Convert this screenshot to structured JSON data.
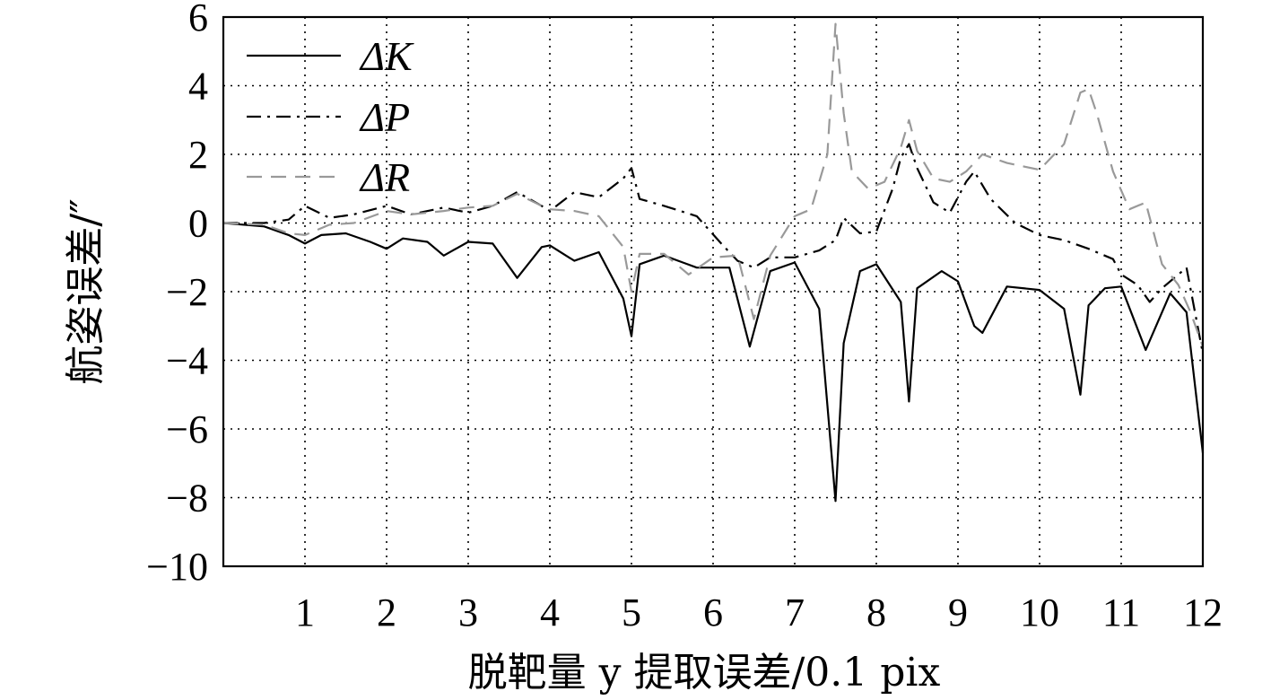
{
  "chart_data": {
    "type": "line",
    "xlabel": "脱靶量 y 提取误差/0.1 pix",
    "ylabel": "航姿误差/″",
    "xlim": [
      0,
      12
    ],
    "ylim": [
      -10,
      6
    ],
    "xticks": [
      "1",
      "2",
      "3",
      "4",
      "5",
      "6",
      "7",
      "8",
      "9",
      "10",
      "11",
      "12"
    ],
    "yticks": [
      "6",
      "4",
      "2",
      "0",
      "−2",
      "−4",
      "−6",
      "−8",
      "−10"
    ],
    "grid": true,
    "legend_position": "top-left",
    "series": [
      {
        "name": "ΔK",
        "style": "solid",
        "color": "#000000",
        "x": [
          0,
          0.5,
          0.8,
          1.0,
          1.2,
          1.5,
          1.8,
          2.0,
          2.2,
          2.5,
          2.7,
          3.0,
          3.3,
          3.6,
          3.9,
          4.0,
          4.3,
          4.6,
          4.9,
          5.0,
          5.1,
          5.4,
          5.8,
          6.2,
          6.45,
          6.7,
          7.0,
          7.3,
          7.5,
          7.6,
          7.8,
          8.0,
          8.3,
          8.4,
          8.5,
          8.8,
          9.0,
          9.2,
          9.3,
          9.6,
          10.0,
          10.3,
          10.5,
          10.6,
          10.8,
          11.0,
          11.3,
          11.6,
          11.8,
          12.0
        ],
        "y": [
          0,
          -0.1,
          -0.35,
          -0.6,
          -0.35,
          -0.3,
          -0.55,
          -0.75,
          -0.45,
          -0.55,
          -0.95,
          -0.55,
          -0.6,
          -1.6,
          -0.7,
          -0.65,
          -1.1,
          -0.85,
          -2.2,
          -3.3,
          -1.2,
          -0.95,
          -1.3,
          -1.3,
          -3.6,
          -1.4,
          -1.15,
          -2.5,
          -8.1,
          -3.5,
          -1.4,
          -1.2,
          -2.3,
          -5.2,
          -1.9,
          -1.4,
          -1.7,
          -3.0,
          -3.2,
          -1.85,
          -1.95,
          -2.5,
          -5.0,
          -2.4,
          -1.9,
          -1.85,
          -3.7,
          -2.05,
          -2.6,
          -6.7
        ]
      },
      {
        "name": "ΔP",
        "style": "dashdot",
        "color": "#000000",
        "x": [
          0,
          0.5,
          0.8,
          1.0,
          1.3,
          1.6,
          2.0,
          2.3,
          2.7,
          3.0,
          3.3,
          3.6,
          3.9,
          4.0,
          4.3,
          4.6,
          4.9,
          5.0,
          5.1,
          5.4,
          5.8,
          6.1,
          6.3,
          6.5,
          6.7,
          7.0,
          7.3,
          7.5,
          7.6,
          7.8,
          8.0,
          8.2,
          8.3,
          8.4,
          8.5,
          8.7,
          8.9,
          9.1,
          9.2,
          9.4,
          9.7,
          10.0,
          10.3,
          10.6,
          10.9,
          11.0,
          11.2,
          11.35,
          11.5,
          11.8,
          12.0
        ],
        "y": [
          0,
          0,
          0.1,
          0.5,
          0.15,
          0.25,
          0.5,
          0.25,
          0.45,
          0.3,
          0.5,
          0.9,
          0.5,
          0.35,
          0.9,
          0.75,
          1.3,
          1.6,
          0.7,
          0.5,
          0.2,
          -0.6,
          -1.1,
          -1.3,
          -1.0,
          -1.0,
          -0.8,
          -0.5,
          0.15,
          -0.3,
          -0.25,
          1.0,
          1.9,
          2.3,
          1.6,
          0.6,
          0.3,
          1.2,
          1.5,
          0.7,
          0.0,
          -0.35,
          -0.5,
          -0.75,
          -1.05,
          -1.5,
          -1.8,
          -2.3,
          -1.9,
          -1.3,
          -3.8
        ]
      },
      {
        "name": "ΔR",
        "style": "dashed",
        "color": "#999999",
        "x": [
          0,
          0.5,
          0.8,
          1.0,
          1.3,
          1.6,
          2.0,
          2.3,
          2.7,
          3.0,
          3.3,
          3.6,
          3.9,
          4.0,
          4.3,
          4.6,
          4.9,
          5.0,
          5.1,
          5.4,
          5.7,
          6.0,
          6.3,
          6.5,
          6.7,
          7.0,
          7.2,
          7.4,
          7.5,
          7.6,
          7.7,
          7.9,
          8.1,
          8.3,
          8.4,
          8.5,
          8.7,
          8.9,
          9.1,
          9.3,
          9.6,
          10.0,
          10.3,
          10.5,
          10.6,
          10.7,
          10.9,
          11.1,
          11.3,
          11.5,
          11.7,
          11.85,
          12.0
        ],
        "y": [
          0,
          -0.05,
          -0.3,
          -0.35,
          -0.05,
          0.0,
          0.35,
          0.25,
          0.35,
          0.45,
          0.5,
          0.85,
          0.5,
          0.4,
          0.35,
          0.2,
          -0.7,
          -2.0,
          -0.9,
          -0.9,
          -1.5,
          -1.0,
          -0.95,
          -2.8,
          -0.95,
          0.2,
          0.4,
          2.0,
          5.8,
          3.2,
          1.5,
          1.0,
          1.2,
          2.2,
          3.0,
          2.1,
          1.3,
          1.2,
          1.5,
          2.0,
          1.75,
          1.55,
          2.3,
          3.8,
          3.9,
          3.2,
          1.5,
          0.4,
          0.6,
          -1.2,
          -1.8,
          -2.6,
          -3.6
        ]
      }
    ]
  }
}
